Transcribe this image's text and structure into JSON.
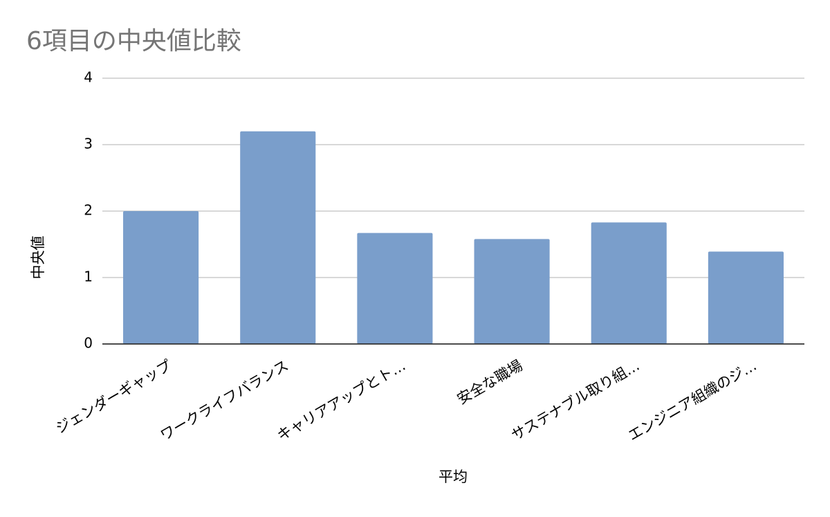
{
  "chart_data": {
    "type": "bar",
    "title": "6項目の中央値比較",
    "xlabel": "平均",
    "ylabel": "中央値",
    "categories": [
      "ジェンダーギャップ",
      "ワークライフバランス",
      "キャリアアップとト…",
      "安全な職場",
      "サステナブル取り組…",
      "エンジニア組織のジ…"
    ],
    "values": [
      2.0,
      3.2,
      1.67,
      1.58,
      1.83,
      1.39
    ],
    "ylim": [
      0,
      4
    ],
    "yticks": [
      0,
      1,
      2,
      3,
      4
    ],
    "grid": true,
    "legend": "none",
    "colors": {
      "bar": "#7a9ecb",
      "grid": "#cccccc",
      "axis": "#333333",
      "title": "#757575"
    }
  }
}
